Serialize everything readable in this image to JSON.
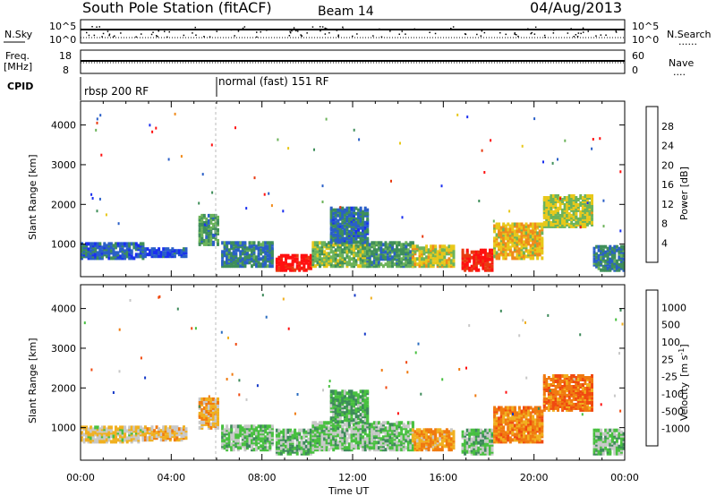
{
  "header": {
    "station": "South Pole Station (fitACF)",
    "beam": "Beam 14",
    "date": "04/Aug/2013"
  },
  "top_labels": {
    "nsky": "N.Sky",
    "nsearch": "N.Search",
    "freq_line1": "Freq.",
    "freq_line2": "[MHz]",
    "nave": "Nave",
    "cpid": "CPID",
    "dotted": "......",
    "dotted_short": "...."
  },
  "noise_panel": {
    "left_ticks": [
      "10^5",
      "10^0"
    ],
    "right_ticks": [
      "10^5",
      "10^0"
    ]
  },
  "freq_panel": {
    "left_ticks": [
      "18",
      "8"
    ],
    "right_ticks": [
      "60",
      "0"
    ]
  },
  "cpid_panel": {
    "modes": [
      "rbsp 200 RF",
      "normal (fast) 151 RF"
    ],
    "switch_time_h": 6
  },
  "x_axis": {
    "label": "Time UT",
    "ticks": [
      "00:00",
      "04:00",
      "08:00",
      "12:00",
      "16:00",
      "20:00",
      "00:00"
    ],
    "range_h": [
      0,
      24
    ]
  },
  "power_panel": {
    "ylabel": "Slant Range [km]",
    "yticks": [
      "1000",
      "2000",
      "3000",
      "4000"
    ],
    "colorbar_label": "Power [dB]",
    "colorbar_ticks": [
      "4",
      "8",
      "12",
      "16",
      "20",
      "24",
      "28"
    ],
    "colors": [
      "#1a2ff0",
      "#2a5fc8",
      "#3f8f5a",
      "#6cb35a",
      "#e8c81a",
      "#f08a1a",
      "#e83a10",
      "#ff1010"
    ]
  },
  "velocity_panel": {
    "ylabel": "Slant Range [km]",
    "yticks": [
      "1000",
      "2000",
      "3000",
      "4000"
    ],
    "colorbar_label_main": "Velocity",
    "colorbar_label_unit": "[m s",
    "colorbar_label_sup": "-1",
    "colorbar_label_close": "]",
    "colorbar_ticks": [
      "1000",
      "500",
      "100",
      "25",
      "-25",
      "-100",
      "-500",
      "-1000"
    ],
    "colors": [
      "#1438c8",
      "#2a6cc0",
      "#3d8a5a",
      "#48c040",
      "#c8c8c8",
      "#f0b020",
      "#f07a10",
      "#f04a10",
      "#ff1010"
    ]
  },
  "chart_data": [
    {
      "type": "heatmap",
      "title": "Power",
      "ylabel": "Slant Range [km]",
      "xlabel": "Time UT",
      "xlim_h": [
        0,
        24
      ],
      "ylim_km": [
        180,
        4600
      ],
      "units": "dB",
      "scale_min": 0,
      "scale_max": 30,
      "echo_regions": [
        {
          "t0": 0.0,
          "t1": 2.8,
          "r0": 600,
          "r1": 1000,
          "v": 6
        },
        {
          "t0": 2.8,
          "t1": 4.6,
          "r0": 650,
          "r1": 850,
          "v": 4
        },
        {
          "t0": 5.2,
          "t1": 6.0,
          "r0": 950,
          "r1": 1700,
          "v": 10
        },
        {
          "t0": 6.2,
          "t1": 8.4,
          "r0": 400,
          "r1": 1000,
          "v": 8
        },
        {
          "t0": 8.6,
          "t1": 10.2,
          "r0": 300,
          "r1": 700,
          "v": 28
        },
        {
          "t0": 10.2,
          "t1": 12.6,
          "r0": 400,
          "r1": 1000,
          "v": 13
        },
        {
          "t0": 11.0,
          "t1": 12.6,
          "r0": 1000,
          "r1": 1900,
          "v": 7
        },
        {
          "t0": 12.6,
          "t1": 14.6,
          "r0": 400,
          "r1": 1000,
          "v": 10
        },
        {
          "t0": 14.6,
          "t1": 16.5,
          "r0": 400,
          "r1": 900,
          "v": 16
        },
        {
          "t0": 16.8,
          "t1": 18.2,
          "r0": 300,
          "r1": 800,
          "v": 27
        },
        {
          "t0": 18.2,
          "t1": 20.4,
          "r0": 600,
          "r1": 1500,
          "v": 18
        },
        {
          "t0": 20.4,
          "t1": 22.6,
          "r0": 1400,
          "r1": 2200,
          "v": 15
        },
        {
          "t0": 22.6,
          "t1": 24.0,
          "r0": 300,
          "r1": 900,
          "v": 8
        }
      ]
    },
    {
      "type": "heatmap",
      "title": "Velocity",
      "ylabel": "Slant Range [km]",
      "xlabel": "Time UT",
      "xlim_h": [
        0,
        24
      ],
      "ylim_km": [
        180,
        4600
      ],
      "units": "m s-1",
      "scale_min": -1000,
      "scale_max": 1000,
      "echo_regions": [
        {
          "t0": 0.0,
          "t1": 2.8,
          "r0": 600,
          "r1": 1000,
          "v": -80
        },
        {
          "t0": 2.8,
          "t1": 4.6,
          "r0": 650,
          "r1": 1000,
          "v": -150
        },
        {
          "t0": 5.2,
          "t1": 6.0,
          "r0": 950,
          "r1": 1700,
          "v": -200
        },
        {
          "t0": 6.2,
          "t1": 8.4,
          "r0": 400,
          "r1": 1000,
          "v": 150
        },
        {
          "t0": 8.6,
          "t1": 10.2,
          "r0": 300,
          "r1": 900,
          "v": 200
        },
        {
          "t0": 10.2,
          "t1": 14.6,
          "r0": 400,
          "r1": 1100,
          "v": 150
        },
        {
          "t0": 11.0,
          "t1": 12.6,
          "r0": 1100,
          "r1": 1900,
          "v": 300
        },
        {
          "t0": 14.6,
          "t1": 16.5,
          "r0": 400,
          "r1": 900,
          "v": -300
        },
        {
          "t0": 16.8,
          "t1": 18.2,
          "r0": 300,
          "r1": 900,
          "v": 200
        },
        {
          "t0": 18.2,
          "t1": 20.4,
          "r0": 600,
          "r1": 1500,
          "v": -400
        },
        {
          "t0": 20.4,
          "t1": 22.6,
          "r0": 1400,
          "r1": 2300,
          "v": -500
        },
        {
          "t0": 22.6,
          "t1": 24.0,
          "r0": 300,
          "r1": 900,
          "v": 150
        }
      ]
    }
  ]
}
